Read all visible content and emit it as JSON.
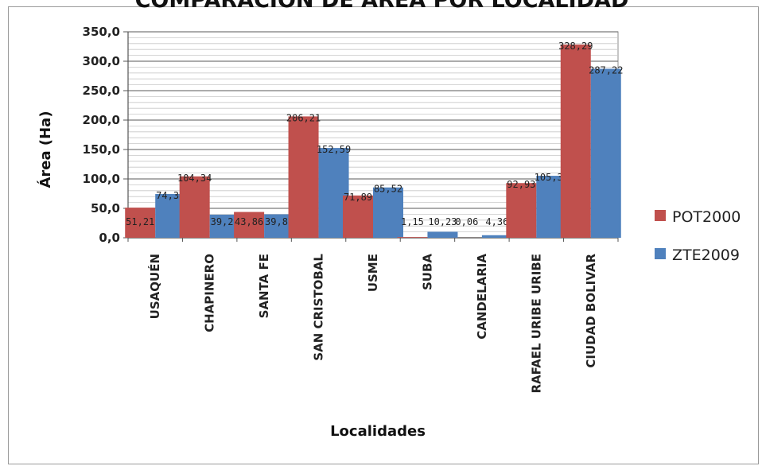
{
  "chart_data": {
    "type": "bar",
    "title": "COMPARACIÓN DE ÁREA POR LOCALIDAD",
    "xlabel": "Localidades",
    "ylabel": "Área (Ha)",
    "ylim": [
      0,
      350
    ],
    "ytick_step": 50,
    "ytick_labels": [
      "0,0",
      "50,0",
      "100,0",
      "150,0",
      "200,0",
      "250,0",
      "300,0",
      "350,0"
    ],
    "grid": true,
    "legend_position": "right",
    "categories": [
      "USAQUÉN",
      "CHAPINERO",
      "SANTA FE",
      "SAN CRISTOBAL",
      "USME",
      "SUBA",
      "CANDELARIA",
      "RAFAEL URIBE URIBE",
      "CIUDAD BOLIVAR"
    ],
    "series": [
      {
        "name": "POT2000",
        "color": "#c0504d",
        "values": [
          51.21,
          104.34,
          43.86,
          206.21,
          71.89,
          1.15,
          0.06,
          92.93,
          328.29
        ],
        "labels": [
          "51,21",
          "104,34",
          "43,86",
          "206,21",
          "71,89",
          "1,15",
          "0,06",
          "92,93",
          "328,29"
        ]
      },
      {
        "name": "ZTE2009",
        "color": "#4f81bd",
        "values": [
          74.38,
          39.24,
          39.83,
          152.59,
          85.52,
          10.23,
          4.36,
          105.32,
          287.22
        ],
        "labels": [
          "74,38",
          "39,24",
          "39,83",
          "152,59",
          "85,52",
          "10,23",
          "4,36",
          "105,32",
          "287,22"
        ]
      }
    ]
  }
}
